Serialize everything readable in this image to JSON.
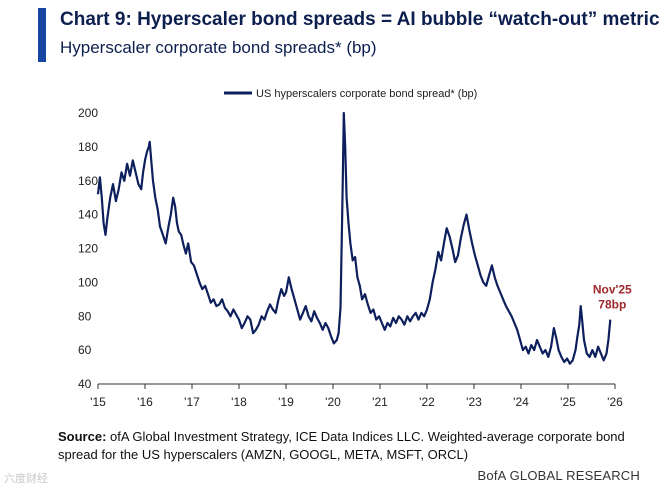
{
  "header": {
    "title": "Chart 9: Hyperscaler bond spreads = AI bubble “watch-out” metric",
    "subtitle": "Hyperscaler corporate bond spreads* (bp)"
  },
  "colors": {
    "accent": "#1746a2",
    "series": "#0d1f5c",
    "annotation": "#a0282d"
  },
  "chart_data": {
    "type": "line",
    "title": "Hyperscaler corporate bond spreads* (bp)",
    "xlabel": "",
    "ylabel": "bp",
    "xlim": [
      2015,
      2026
    ],
    "ylim": [
      40,
      200
    ],
    "yticks": [
      40,
      60,
      80,
      100,
      120,
      140,
      160,
      180,
      200
    ],
    "xtick_values": [
      2015,
      2016,
      2017,
      2018,
      2019,
      2020,
      2021,
      2022,
      2023,
      2024,
      2025,
      2026
    ],
    "xtick_labels": [
      "'15",
      "'16",
      "'17",
      "'18",
      "'19",
      "'20",
      "'21",
      "'22",
      "'23",
      "'24",
      "'25",
      "'26"
    ],
    "legend": {
      "label": "US hyperscalers corporate bond spread* (bp)",
      "position": "top-center"
    },
    "annotation": {
      "line1": "Nov'25",
      "line2": "78bp",
      "x": 2025.9,
      "y": 78
    },
    "series": [
      {
        "name": "US hyperscalers corporate bond spread* (bp)",
        "points": [
          [
            2015.0,
            152
          ],
          [
            2015.04,
            162
          ],
          [
            2015.08,
            150
          ],
          [
            2015.12,
            135
          ],
          [
            2015.16,
            128
          ],
          [
            2015.2,
            138
          ],
          [
            2015.26,
            150
          ],
          [
            2015.32,
            158
          ],
          [
            2015.38,
            148
          ],
          [
            2015.44,
            155
          ],
          [
            2015.5,
            165
          ],
          [
            2015.56,
            160
          ],
          [
            2015.62,
            170
          ],
          [
            2015.68,
            163
          ],
          [
            2015.74,
            172
          ],
          [
            2015.8,
            165
          ],
          [
            2015.86,
            158
          ],
          [
            2015.92,
            155
          ],
          [
            2015.96,
            165
          ],
          [
            2016.0,
            172
          ],
          [
            2016.04,
            177
          ],
          [
            2016.08,
            180
          ],
          [
            2016.1,
            183
          ],
          [
            2016.13,
            173
          ],
          [
            2016.17,
            160
          ],
          [
            2016.22,
            150
          ],
          [
            2016.27,
            143
          ],
          [
            2016.32,
            133
          ],
          [
            2016.38,
            128
          ],
          [
            2016.44,
            123
          ],
          [
            2016.5,
            133
          ],
          [
            2016.55,
            140
          ],
          [
            2016.6,
            150
          ],
          [
            2016.64,
            145
          ],
          [
            2016.68,
            135
          ],
          [
            2016.72,
            130
          ],
          [
            2016.77,
            128
          ],
          [
            2016.82,
            122
          ],
          [
            2016.87,
            117
          ],
          [
            2016.92,
            123
          ],
          [
            2016.98,
            112
          ],
          [
            2017.04,
            110
          ],
          [
            2017.1,
            105
          ],
          [
            2017.16,
            100
          ],
          [
            2017.22,
            96
          ],
          [
            2017.28,
            98
          ],
          [
            2017.34,
            93
          ],
          [
            2017.4,
            88
          ],
          [
            2017.46,
            90
          ],
          [
            2017.52,
            86
          ],
          [
            2017.58,
            87
          ],
          [
            2017.64,
            90
          ],
          [
            2017.7,
            85
          ],
          [
            2017.76,
            83
          ],
          [
            2017.82,
            80
          ],
          [
            2017.88,
            84
          ],
          [
            2017.94,
            81
          ],
          [
            2018.0,
            78
          ],
          [
            2018.06,
            73
          ],
          [
            2018.12,
            76
          ],
          [
            2018.18,
            80
          ],
          [
            2018.24,
            78
          ],
          [
            2018.3,
            70
          ],
          [
            2018.36,
            72
          ],
          [
            2018.42,
            75
          ],
          [
            2018.48,
            80
          ],
          [
            2018.54,
            78
          ],
          [
            2018.6,
            83
          ],
          [
            2018.66,
            87
          ],
          [
            2018.72,
            84
          ],
          [
            2018.78,
            82
          ],
          [
            2018.84,
            90
          ],
          [
            2018.9,
            96
          ],
          [
            2018.96,
            92
          ],
          [
            2019.0,
            94
          ],
          [
            2019.06,
            103
          ],
          [
            2019.12,
            96
          ],
          [
            2019.18,
            90
          ],
          [
            2019.24,
            84
          ],
          [
            2019.3,
            78
          ],
          [
            2019.36,
            82
          ],
          [
            2019.42,
            86
          ],
          [
            2019.48,
            80
          ],
          [
            2019.54,
            77
          ],
          [
            2019.6,
            83
          ],
          [
            2019.66,
            79
          ],
          [
            2019.72,
            76
          ],
          [
            2019.78,
            72
          ],
          [
            2019.84,
            76
          ],
          [
            2019.9,
            73
          ],
          [
            2019.96,
            68
          ],
          [
            2020.02,
            64
          ],
          [
            2020.08,
            66
          ],
          [
            2020.12,
            70
          ],
          [
            2020.16,
            85
          ],
          [
            2020.19,
            130
          ],
          [
            2020.21,
            165
          ],
          [
            2020.23,
            200
          ],
          [
            2020.26,
            180
          ],
          [
            2020.29,
            150
          ],
          [
            2020.33,
            135
          ],
          [
            2020.37,
            123
          ],
          [
            2020.42,
            113
          ],
          [
            2020.47,
            115
          ],
          [
            2020.52,
            103
          ],
          [
            2020.57,
            98
          ],
          [
            2020.62,
            90
          ],
          [
            2020.68,
            93
          ],
          [
            2020.74,
            87
          ],
          [
            2020.8,
            82
          ],
          [
            2020.86,
            84
          ],
          [
            2020.92,
            78
          ],
          [
            2020.98,
            80
          ],
          [
            2021.04,
            76
          ],
          [
            2021.1,
            72
          ],
          [
            2021.16,
            76
          ],
          [
            2021.22,
            74
          ],
          [
            2021.28,
            79
          ],
          [
            2021.34,
            76
          ],
          [
            2021.4,
            80
          ],
          [
            2021.46,
            78
          ],
          [
            2021.52,
            75
          ],
          [
            2021.58,
            80
          ],
          [
            2021.64,
            77
          ],
          [
            2021.7,
            80
          ],
          [
            2021.76,
            82
          ],
          [
            2021.82,
            78
          ],
          [
            2021.88,
            82
          ],
          [
            2021.94,
            80
          ],
          [
            2022.0,
            84
          ],
          [
            2022.06,
            90
          ],
          [
            2022.12,
            100
          ],
          [
            2022.18,
            108
          ],
          [
            2022.24,
            118
          ],
          [
            2022.3,
            113
          ],
          [
            2022.36,
            123
          ],
          [
            2022.42,
            132
          ],
          [
            2022.48,
            127
          ],
          [
            2022.54,
            120
          ],
          [
            2022.6,
            112
          ],
          [
            2022.66,
            116
          ],
          [
            2022.72,
            126
          ],
          [
            2022.78,
            134
          ],
          [
            2022.84,
            140
          ],
          [
            2022.9,
            131
          ],
          [
            2022.96,
            123
          ],
          [
            2023.02,
            116
          ],
          [
            2023.08,
            110
          ],
          [
            2023.14,
            104
          ],
          [
            2023.2,
            100
          ],
          [
            2023.26,
            98
          ],
          [
            2023.32,
            104
          ],
          [
            2023.38,
            110
          ],
          [
            2023.44,
            103
          ],
          [
            2023.5,
            98
          ],
          [
            2023.56,
            94
          ],
          [
            2023.62,
            90
          ],
          [
            2023.68,
            86
          ],
          [
            2023.74,
            83
          ],
          [
            2023.8,
            80
          ],
          [
            2023.86,
            76
          ],
          [
            2023.92,
            72
          ],
          [
            2023.98,
            66
          ],
          [
            2024.04,
            60
          ],
          [
            2024.1,
            62
          ],
          [
            2024.16,
            58
          ],
          [
            2024.22,
            63
          ],
          [
            2024.28,
            60
          ],
          [
            2024.34,
            66
          ],
          [
            2024.4,
            62
          ],
          [
            2024.46,
            58
          ],
          [
            2024.52,
            60
          ],
          [
            2024.58,
            56
          ],
          [
            2024.64,
            62
          ],
          [
            2024.7,
            73
          ],
          [
            2024.75,
            67
          ],
          [
            2024.8,
            60
          ],
          [
            2024.86,
            56
          ],
          [
            2024.92,
            53
          ],
          [
            2024.98,
            55
          ],
          [
            2025.04,
            52
          ],
          [
            2025.1,
            54
          ],
          [
            2025.16,
            60
          ],
          [
            2025.2,
            68
          ],
          [
            2025.24,
            75
          ],
          [
            2025.27,
            86
          ],
          [
            2025.3,
            78
          ],
          [
            2025.34,
            66
          ],
          [
            2025.4,
            58
          ],
          [
            2025.46,
            56
          ],
          [
            2025.52,
            60
          ],
          [
            2025.58,
            56
          ],
          [
            2025.64,
            62
          ],
          [
            2025.7,
            58
          ],
          [
            2025.76,
            54
          ],
          [
            2025.82,
            58
          ],
          [
            2025.86,
            66
          ],
          [
            2025.9,
            78
          ]
        ]
      }
    ]
  },
  "footer": {
    "source_label": "Source:",
    "source_text": " ofA Global Investment Strategy, ICE Data Indices LLC. Weighted-average corporate bond spread for the US hyperscalers (AMZN, GOOGL, META, MSFT, ORCL)",
    "brand": "BofA GLOBAL RESEARCH",
    "watermark": "六度财经"
  }
}
